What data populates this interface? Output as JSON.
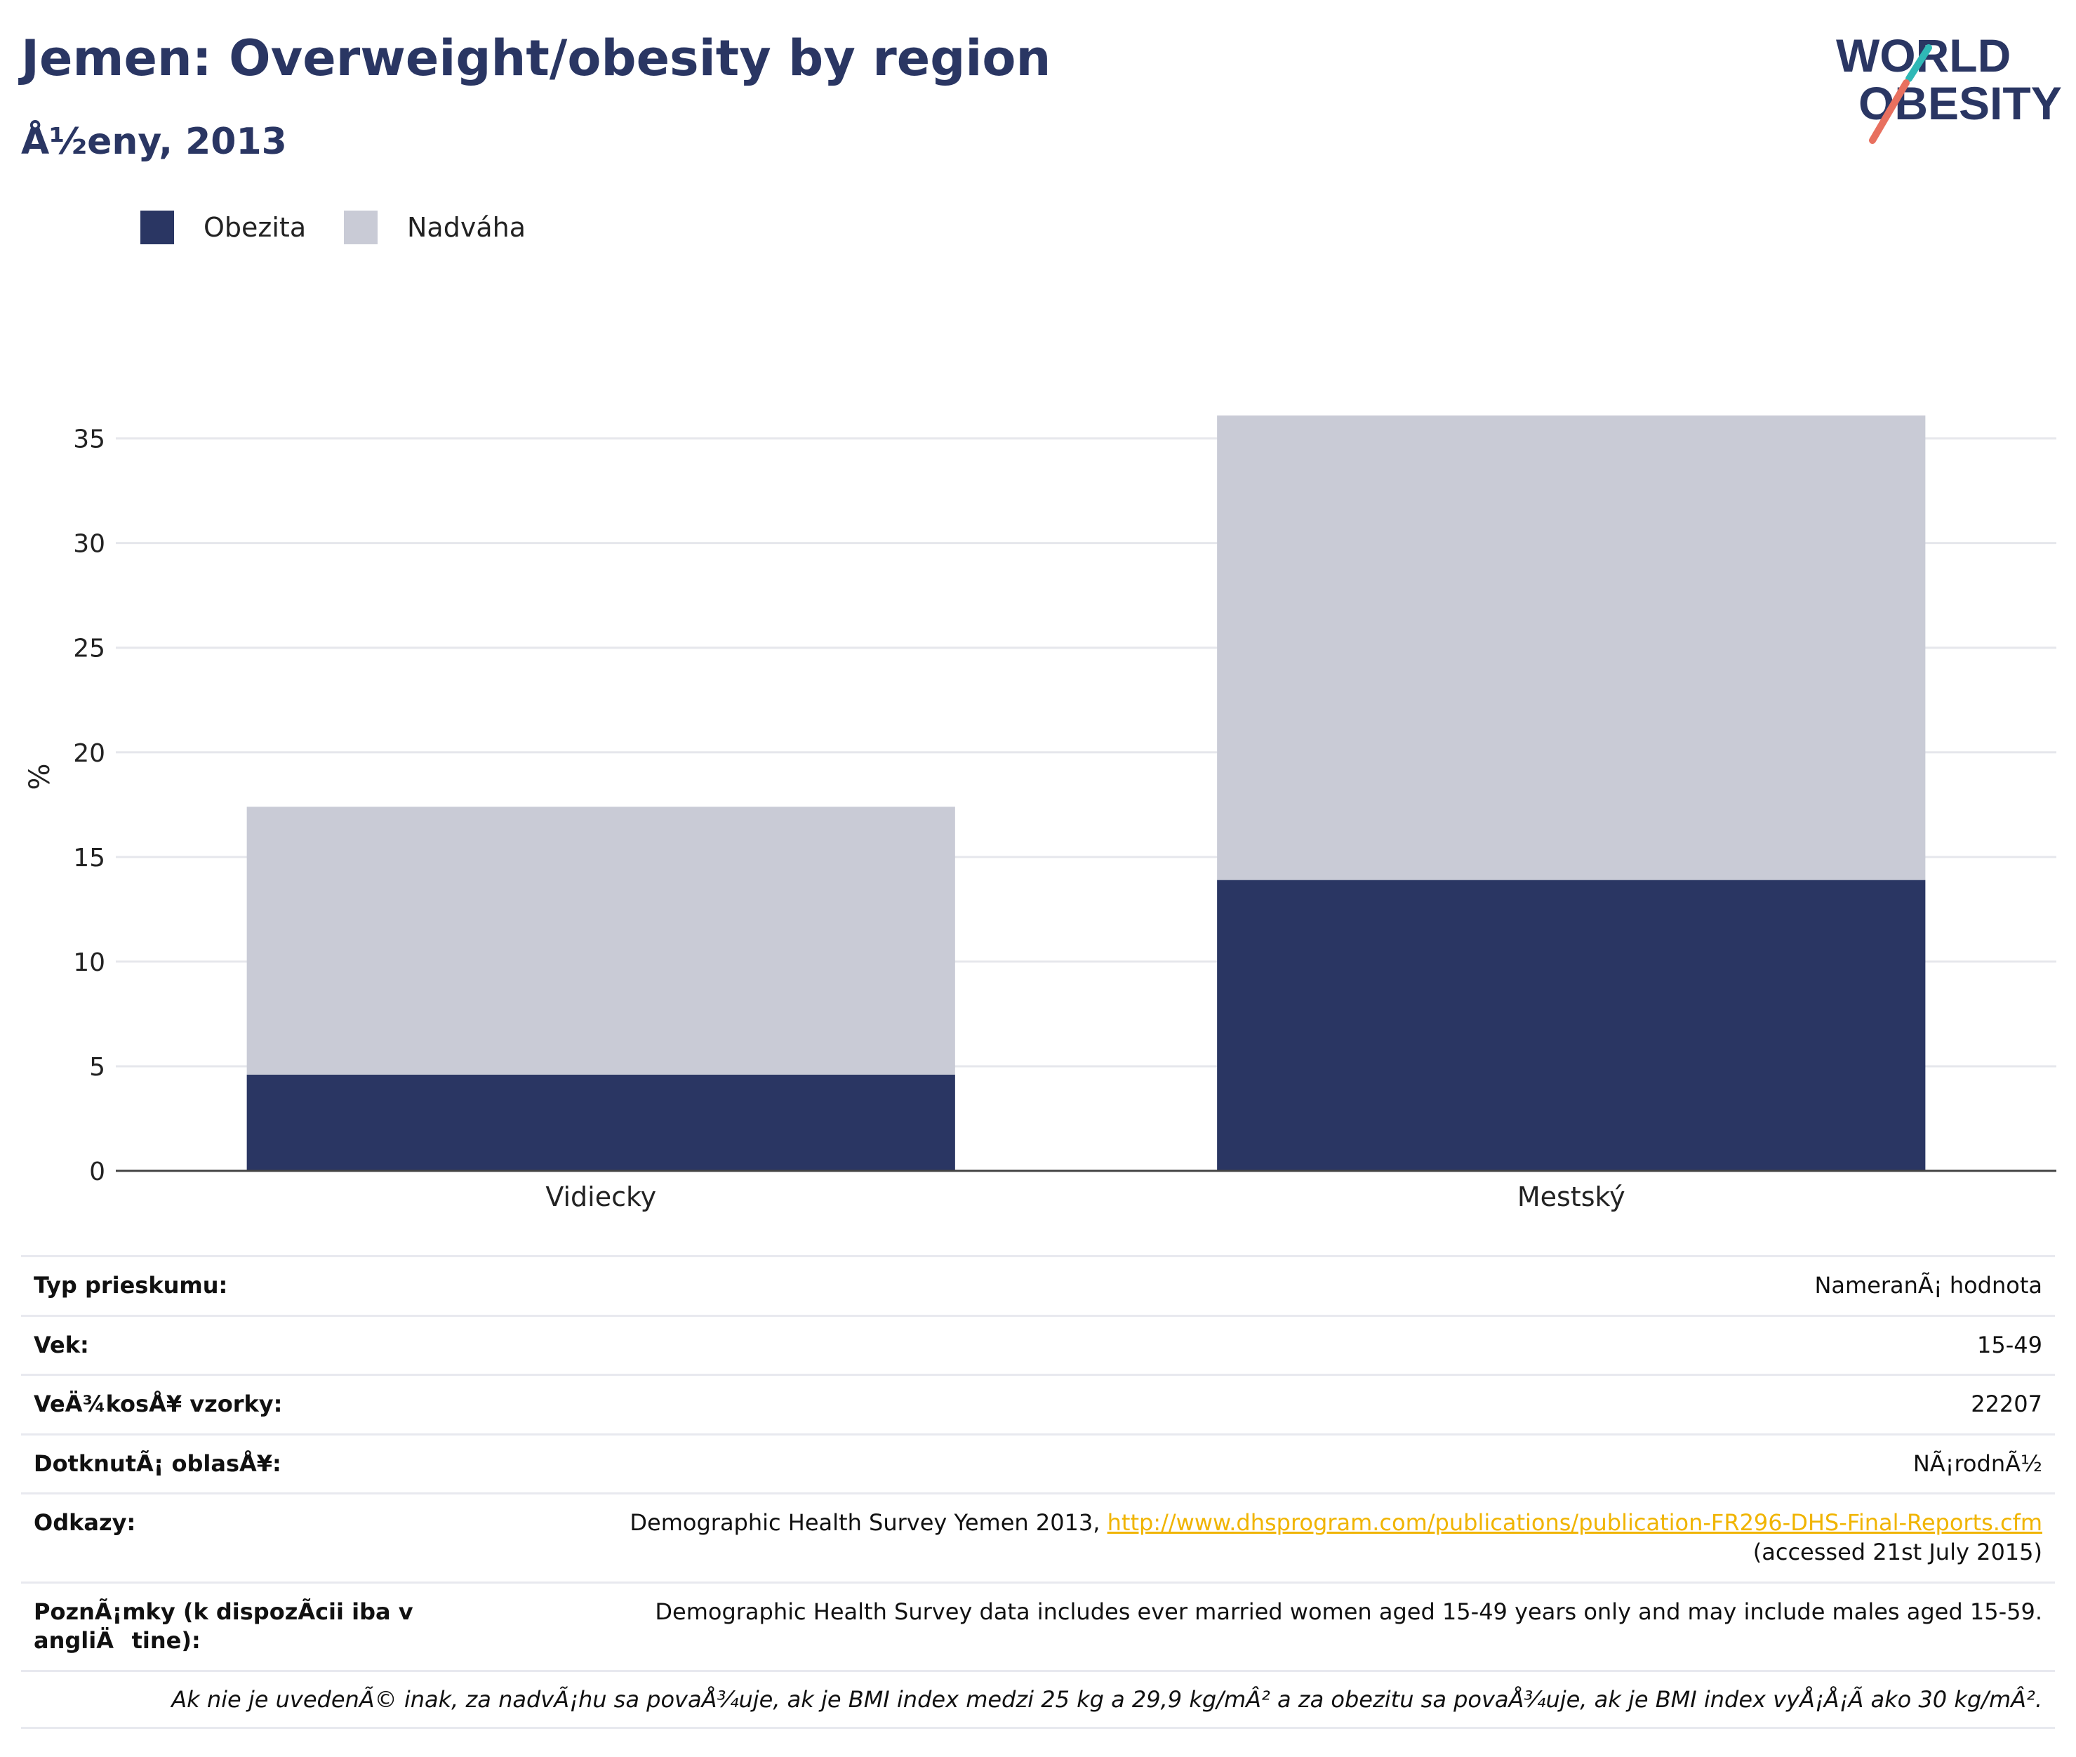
{
  "header": {
    "title": "Jemen: Overweight/obesity by region",
    "subtitle": "Å½eny, 2013"
  },
  "logo": {
    "line1": "WORLD",
    "line2": "OBESITY"
  },
  "legend": [
    {
      "label": "Obezita",
      "color": "#2a3663"
    },
    {
      "label": "Nadváha",
      "color": "#c9cbd6"
    }
  ],
  "chart_data": {
    "type": "bar",
    "stacked": true,
    "categories": [
      "Vidiecky",
      "Mestský"
    ],
    "series": [
      {
        "name": "Obezita",
        "values": [
          4.6,
          13.9
        ],
        "color": "#2a3663"
      },
      {
        "name": "Nadváha",
        "values": [
          12.8,
          22.2
        ],
        "color": "#c9cbd6"
      }
    ],
    "ylabel": "%",
    "ylim": [
      0,
      37
    ],
    "yticks": [
      0,
      5,
      10,
      15,
      20,
      25,
      30,
      35
    ],
    "grid": true,
    "legend_position": "top-left"
  },
  "info": {
    "rows": [
      {
        "label": "Typ prieskumu:",
        "value": "NameranÃ¡ hodnota"
      },
      {
        "label": "Vek:",
        "value": "15-49"
      },
      {
        "label": "VeÄ¾kosÅ¥ vzorky:",
        "value": "22207"
      },
      {
        "label": "DotknutÃ¡ oblasÅ¥:",
        "value": "NÃ¡rodnÃ½"
      }
    ],
    "refs_label": "Odkazy:",
    "refs_text": "Demographic Health Survey Yemen 2013, ",
    "refs_link": "http://www.dhsprogram.com/publications/publication-FR296-DHS-Final-Reports.cfm",
    "refs_accessed": "(accessed 21st July 2015)",
    "notes_label": "PoznÃ¡mky (k dispozÃcii iba v angliÄtine):",
    "notes_value": "Demographic Health Survey data includes ever married women aged 15-49 years only and may include males aged 15-59.",
    "footnote": "Ak nie je uvedenÃ© inak, za nadvÃ¡hu sa povaÅ¾uje, ak je BMI index medzi 25 kg a 29,9 kg/mÂ² a za obezitu sa povaÅ¾uje, ak je BMI index vyÅ¡Å¡Ã ako 30 kg/mÂ²."
  }
}
